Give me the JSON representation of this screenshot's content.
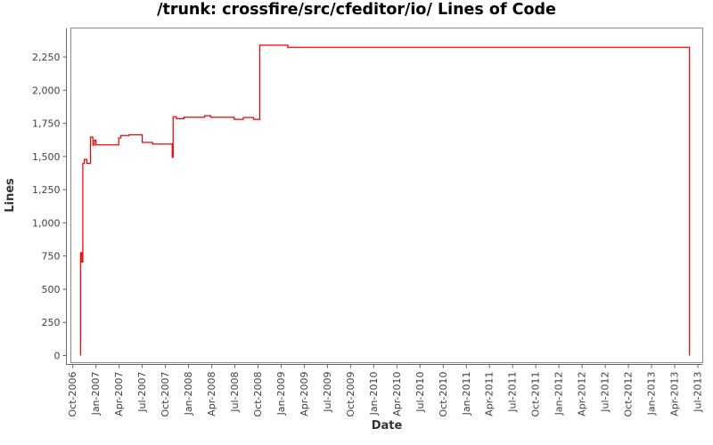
{
  "chart_data": {
    "type": "line",
    "title": "/trunk: crossfire/src/cfeditor/io/ Lines of Code",
    "xlabel": "Date",
    "ylabel": "Lines",
    "grid": false,
    "legend": false,
    "line_color": "#f40000",
    "frame_color": "#8c8c8c",
    "axis_color": "#666666",
    "text_color": "#3f3f3f",
    "ylim": [
      0,
      2470
    ],
    "y_ticks": [
      0,
      250,
      500,
      750,
      1000,
      1250,
      1500,
      1750,
      2000,
      2250
    ],
    "y_tick_labels": [
      "0",
      "250",
      "500",
      "750",
      "1,000",
      "1,250",
      "1,500",
      "1,750",
      "2,000",
      "2,250"
    ],
    "x_tick_labels": [
      "Oct-2006",
      "Jan-2007",
      "Apr-2007",
      "Jul-2007",
      "Oct-2007",
      "Jan-2008",
      "Apr-2008",
      "Jul-2008",
      "Oct-2008",
      "Jan-2009",
      "Apr-2009",
      "Jul-2009",
      "Oct-2009",
      "Jan-2010",
      "Apr-2010",
      "Jul-2010",
      "Oct-2010",
      "Jan-2011",
      "Apr-2011",
      "Jul-2011",
      "Oct-2011",
      "Jan-2012",
      "Apr-2012",
      "Jul-2012",
      "Oct-2012",
      "Jan-2013",
      "Apr-2013",
      "Jul-2013"
    ],
    "x_tick_interval_months": 3,
    "series": [
      {
        "name": "lines-of-code",
        "step": true,
        "points": [
          [
            "2006-11-01",
            0
          ],
          [
            "2006-11-01",
            775
          ],
          [
            "2006-11-06",
            705
          ],
          [
            "2006-11-10",
            1448
          ],
          [
            "2006-11-16",
            1478
          ],
          [
            "2006-11-26",
            1448
          ],
          [
            "2006-12-10",
            1646
          ],
          [
            "2006-12-19",
            1586
          ],
          [
            "2006-12-25",
            1622
          ],
          [
            "2007-01-01",
            1588
          ],
          [
            "2007-03-30",
            1640
          ],
          [
            "2007-04-08",
            1658
          ],
          [
            "2007-05-09",
            1663
          ],
          [
            "2007-07-01",
            1606
          ],
          [
            "2007-08-11",
            1594
          ],
          [
            "2007-10-28",
            1494
          ],
          [
            "2007-11-01",
            1800
          ],
          [
            "2007-11-14",
            1785
          ],
          [
            "2007-12-13",
            1796
          ],
          [
            "2008-03-04",
            1807
          ],
          [
            "2008-03-27",
            1796
          ],
          [
            "2008-06-29",
            1780
          ],
          [
            "2008-08-04",
            1794
          ],
          [
            "2008-09-14",
            1780
          ],
          [
            "2008-10-08",
            2339
          ],
          [
            "2009-01-27",
            2322
          ],
          [
            "2013-05-29",
            0
          ]
        ]
      }
    ]
  }
}
